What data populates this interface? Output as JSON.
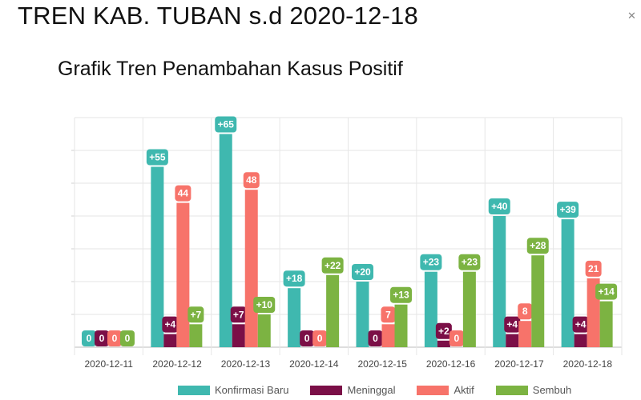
{
  "page": {
    "title": "TREN KAB. TUBAN s.d 2020-12-18"
  },
  "chart_data": {
    "type": "bar",
    "title": "Grafik Tren Penambahan Kasus Positif",
    "xlabel": "",
    "ylabel": "",
    "ylim": [
      0,
      70
    ],
    "grid": true,
    "legend_position": "bottom",
    "categories": [
      "2020-12-11",
      "2020-12-12",
      "2020-12-13",
      "2020-12-14",
      "2020-12-15",
      "2020-12-16",
      "2020-12-17",
      "2020-12-18"
    ],
    "series": [
      {
        "name": "Konfirmasi Baru",
        "color": "#3fb8af",
        "values": [
          0,
          55,
          65,
          18,
          20,
          23,
          40,
          39
        ],
        "labels": [
          "0",
          "+55",
          "+65",
          "+18",
          "+20",
          "+23",
          "+40",
          "+39"
        ]
      },
      {
        "name": "Meninggal",
        "color": "#7b0f47",
        "values": [
          0,
          4,
          7,
          0,
          0,
          2,
          4,
          4
        ],
        "labels": [
          "0",
          "+4",
          "+7",
          "0",
          "0",
          "+2",
          "+4",
          "+4"
        ]
      },
      {
        "name": "Aktif",
        "color": "#f7736a",
        "values": [
          0,
          44,
          48,
          0,
          7,
          0,
          8,
          21
        ],
        "labels": [
          "0",
          "44",
          "48",
          "0",
          "7",
          "0",
          "8",
          "21"
        ]
      },
      {
        "name": "Sembuh",
        "color": "#7cb342",
        "values": [
          0,
          7,
          10,
          22,
          13,
          23,
          28,
          14
        ],
        "labels": [
          "0",
          "+7",
          "+10",
          "+22",
          "+13",
          "+23",
          "+28",
          "+14"
        ]
      }
    ]
  }
}
